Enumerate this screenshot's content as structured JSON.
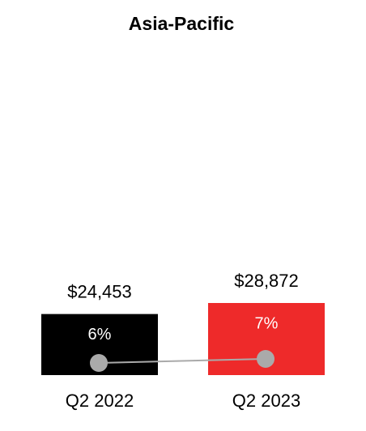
{
  "chart_data": {
    "type": "bar",
    "title": "Asia-Pacific",
    "categories": [
      "Q2 2022",
      "Q2 2023"
    ],
    "series": [
      {
        "type": "bar",
        "values": [
          24453,
          28872
        ],
        "value_labels": [
          "$24,453",
          "$28,872"
        ],
        "colors": [
          "#000000",
          "#ee2a2a"
        ]
      },
      {
        "type": "line",
        "axis": "y2",
        "values": [
          6,
          7
        ],
        "value_labels": [
          "6%",
          "7%"
        ],
        "color": "#aaaaaa"
      }
    ]
  }
}
